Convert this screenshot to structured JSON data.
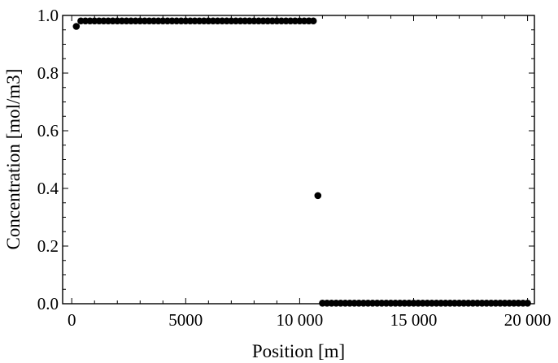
{
  "chart_data": {
    "type": "scatter",
    "title": "",
    "xlabel": "Position [m]",
    "ylabel": "Concentration [mol/m3]",
    "xlim": [
      -400,
      20300
    ],
    "ylim": [
      0,
      1.0
    ],
    "x_ticks": [
      {
        "value": 0,
        "label": "0"
      },
      {
        "value": 5000,
        "label": "5000"
      },
      {
        "value": 10000,
        "label": "10 000"
      },
      {
        "value": 15000,
        "label": "15 000"
      },
      {
        "value": 20000,
        "label": "20 000"
      }
    ],
    "y_ticks": [
      {
        "value": 0.0,
        "label": "0.0"
      },
      {
        "value": 0.2,
        "label": "0.2"
      },
      {
        "value": 0.4,
        "label": "0.4"
      },
      {
        "value": 0.6,
        "label": "0.6"
      },
      {
        "value": 0.8,
        "label": "0.8"
      },
      {
        "value": 1.0,
        "label": "1.0"
      }
    ],
    "grid": false,
    "series": [
      {
        "x": [
          200,
          400,
          600,
          800,
          1000,
          1200,
          1400,
          1600,
          1800,
          2000,
          2200,
          2400,
          2600,
          2800,
          3000,
          3200,
          3400,
          3600,
          3800,
          4000,
          4200,
          4400,
          4600,
          4800,
          5000,
          5200,
          5400,
          5600,
          5800,
          6000,
          6200,
          6400,
          6600,
          6800,
          7000,
          7200,
          7400,
          7600,
          7800,
          8000,
          8200,
          8400,
          8600,
          8800,
          9000,
          9200,
          9400,
          9600,
          9800,
          10000,
          10200,
          10400,
          10600,
          10800,
          11000,
          11200,
          11400,
          11600,
          11800,
          12000,
          12200,
          12400,
          12600,
          12800,
          13000,
          13200,
          13400,
          13600,
          13800,
          14000,
          14200,
          14400,
          14600,
          14800,
          15000,
          15200,
          15400,
          15600,
          15800,
          16000,
          16200,
          16400,
          16600,
          16800,
          17000,
          17200,
          17400,
          17600,
          17800,
          18000,
          18200,
          18400,
          18600,
          18800,
          19000,
          19200,
          19400,
          19600,
          19800,
          20000
        ],
        "y": [
          0.962,
          0.981,
          0.981,
          0.981,
          0.981,
          0.981,
          0.981,
          0.981,
          0.981,
          0.981,
          0.981,
          0.981,
          0.981,
          0.981,
          0.981,
          0.981,
          0.981,
          0.981,
          0.981,
          0.981,
          0.981,
          0.981,
          0.981,
          0.981,
          0.981,
          0.981,
          0.981,
          0.981,
          0.981,
          0.981,
          0.981,
          0.981,
          0.981,
          0.981,
          0.981,
          0.981,
          0.981,
          0.981,
          0.981,
          0.981,
          0.981,
          0.981,
          0.981,
          0.981,
          0.981,
          0.981,
          0.981,
          0.981,
          0.981,
          0.981,
          0.981,
          0.981,
          0.981,
          0.375,
          0.002,
          0.002,
          0.002,
          0.002,
          0.002,
          0.002,
          0.002,
          0.002,
          0.002,
          0.002,
          0.002,
          0.002,
          0.002,
          0.002,
          0.002,
          0.002,
          0.002,
          0.002,
          0.002,
          0.002,
          0.002,
          0.002,
          0.002,
          0.002,
          0.002,
          0.002,
          0.002,
          0.002,
          0.002,
          0.002,
          0.002,
          0.002,
          0.002,
          0.002,
          0.002,
          0.002,
          0.002,
          0.002,
          0.002,
          0.002,
          0.002,
          0.002,
          0.002,
          0.002,
          0.002,
          0.002
        ]
      }
    ],
    "marker_color": "#000000"
  }
}
